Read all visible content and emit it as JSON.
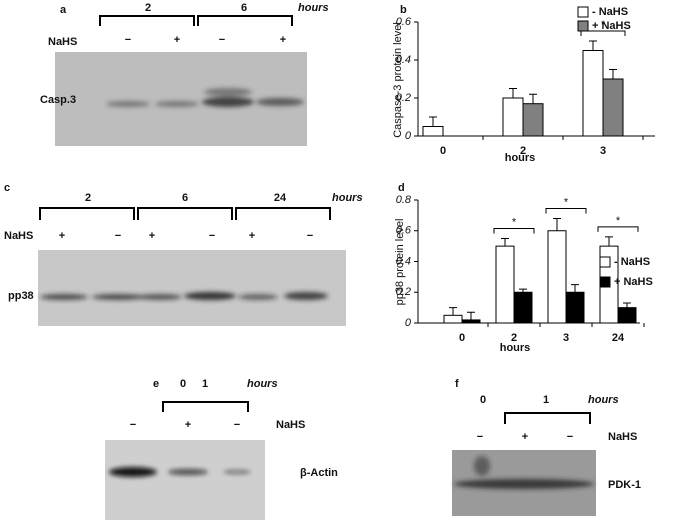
{
  "panels": [
    {
      "letter": "a",
      "groups": [
        "2",
        "6"
      ],
      "time_unit": "hours",
      "treatment": "NaHS",
      "signs": [
        "−",
        "+",
        "−",
        "+"
      ],
      "protein": "Casp.3"
    },
    {
      "letter": "c",
      "groups": [
        "2",
        "6",
        "24"
      ],
      "time_unit": "hours",
      "treatment": "NaHS",
      "signs": [
        "+",
        "−",
        "+",
        "−",
        "+",
        "−"
      ],
      "protein": "pp38"
    },
    {
      "letter": "e",
      "groups": [
        "0",
        "1"
      ],
      "time_unit": "hours",
      "treatment": "NaHS",
      "signs": [
        "−",
        "+",
        "−"
      ],
      "protein": "β-Actin"
    },
    {
      "letter": "f",
      "groups": [
        "0",
        "1"
      ],
      "time_unit": "hours",
      "treatment": "NaHS",
      "signs": [
        "−",
        "+",
        "−"
      ],
      "protein": "PDK-1"
    }
  ],
  "chart_data": [
    {
      "type": "bar",
      "panel_label": "b",
      "ylabel": "Caspase-3 protein level",
      "xlabel": "hours",
      "categories": [
        "0",
        "2",
        "3"
      ],
      "series": [
        {
          "name": "- NaHS",
          "color": "#ffffff",
          "values": [
            0.05,
            0.2,
            0.45
          ],
          "errors": [
            0.05,
            0.05,
            0.05
          ]
        },
        {
          "name": "+ NaHS",
          "color": "#808080",
          "values": [
            null,
            0.17,
            0.3
          ],
          "errors": [
            null,
            0.05,
            0.05
          ]
        }
      ],
      "significance": [
        null,
        null,
        "*"
      ],
      "ylim": [
        0,
        0.6
      ],
      "yticks": [
        0,
        0.2,
        0.4,
        0.6
      ]
    },
    {
      "type": "bar",
      "panel_label": "d",
      "ylabel": "pp38 protein level",
      "xlabel": "hours",
      "categories": [
        "0",
        "2",
        "3",
        "24"
      ],
      "series": [
        {
          "name": "- NaHS",
          "color": "#ffffff",
          "values": [
            0.05,
            0.5,
            0.6,
            0.5
          ],
          "errors": [
            0.05,
            0.05,
            0.08,
            0.06
          ]
        },
        {
          "name": "+ NaHS",
          "color": "#000000",
          "values": [
            0.02,
            0.2,
            0.2,
            0.1
          ],
          "errors": [
            0.05,
            0.02,
            0.05,
            0.03
          ]
        }
      ],
      "significance": [
        null,
        "*",
        "*",
        "*"
      ],
      "ylim": [
        0,
        0.8
      ],
      "yticks": [
        0,
        0.2,
        0.4,
        0.6,
        0.8
      ]
    }
  ]
}
